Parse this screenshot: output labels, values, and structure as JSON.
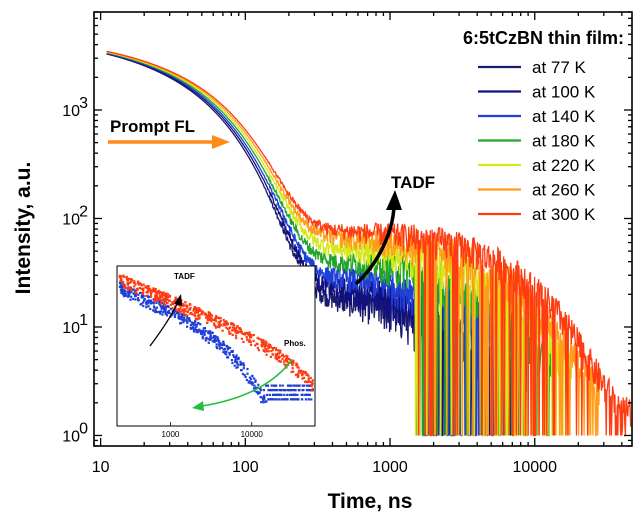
{
  "chart_data": {
    "type": "line",
    "xlabel": "Time, ns",
    "ylabel": "Intensity, a.u.",
    "xscale": "log",
    "yscale": "log",
    "xlim": [
      9,
      47000
    ],
    "ylim": [
      0.8,
      8000
    ],
    "x_ticks": [
      {
        "value": 10,
        "label": "10"
      },
      {
        "value": 100,
        "label": "100"
      },
      {
        "value": 1000,
        "label": "1000"
      },
      {
        "value": 10000,
        "label": "10000"
      }
    ],
    "y_ticks": [
      {
        "value": 1,
        "base": "10",
        "exp": "0"
      },
      {
        "value": 10,
        "base": "10",
        "exp": "1"
      },
      {
        "value": 100,
        "base": "10",
        "exp": "2"
      },
      {
        "value": 1000,
        "base": "10",
        "exp": "3"
      }
    ],
    "legend_title": "6:5tCzBN thin film:",
    "legend_position": "top-right",
    "series": [
      {
        "name": "at 77 K",
        "color": "#1a1a6e",
        "tail": 20,
        "noise": 0.55,
        "end": 6000
      },
      {
        "name": "at 100 K",
        "color": "#101080",
        "tail": 24,
        "noise": 0.55,
        "end": 7000
      },
      {
        "name": "at 140 K",
        "color": "#1f3fd6",
        "tail": 30,
        "noise": 0.5,
        "end": 9000
      },
      {
        "name": "at 180 K",
        "color": "#22a52a",
        "tail": 42,
        "noise": 0.45,
        "end": 13000
      },
      {
        "name": "at 220 K",
        "color": "#d6e81a",
        "tail": 55,
        "noise": 0.45,
        "end": 18000
      },
      {
        "name": "at 260 K",
        "color": "#ff9c1a",
        "tail": 68,
        "noise": 0.4,
        "end": 28000
      },
      {
        "name": "at 300 K",
        "color": "#ff3b12",
        "tail": 80,
        "noise": 0.35,
        "end": 46000
      }
    ],
    "annotations": {
      "prompt": {
        "text": "Prompt FL",
        "color": "#ff8c1a"
      },
      "tadf": {
        "text": "TADF"
      }
    },
    "inset": {
      "x_ticks": [
        {
          "value": 1000,
          "label": "1000"
        },
        {
          "value": 10000,
          "label": "10000"
        }
      ],
      "tadf_label": "TADF",
      "phos_label": "Phos.",
      "series_colors": [
        "#1f3fd6",
        "#ff3b12"
      ],
      "arrow_color": "#22c03a"
    }
  }
}
